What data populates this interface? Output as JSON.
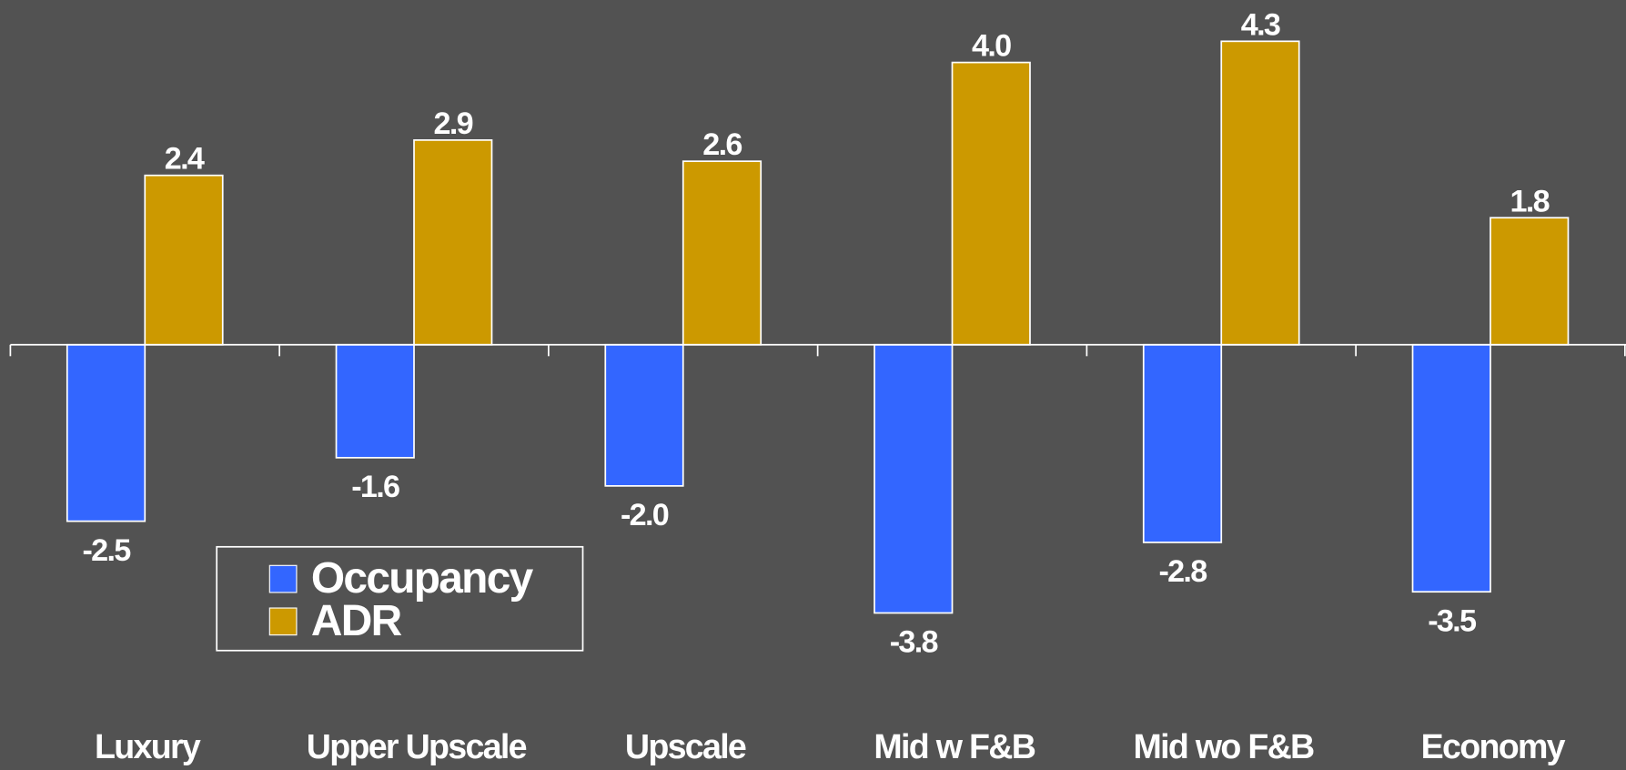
{
  "chart_data": {
    "type": "bar",
    "categories": [
      "Luxury",
      "Upper Upscale",
      "Upscale",
      "Mid w F&B",
      "Mid wo F&B",
      "Economy"
    ],
    "series": [
      {
        "name": "Occupancy",
        "color": "#3366ff",
        "values": [
          -2.5,
          -1.6,
          -2.0,
          -3.8,
          -2.8,
          -3.5
        ],
        "value_labels": [
          "-2.5",
          "-1.6",
          "-2.0",
          "-3.8",
          "-2.8",
          "-3.5"
        ]
      },
      {
        "name": "ADR",
        "color": "#cc9900",
        "values": [
          2.4,
          2.9,
          2.6,
          4.0,
          4.3,
          1.8
        ],
        "value_labels": [
          "2.4",
          "2.9",
          "2.6",
          "4.0",
          "4.3",
          "1.8"
        ]
      }
    ],
    "ylim": [
      -4.5,
      4.8
    ],
    "legend": "lower left"
  }
}
